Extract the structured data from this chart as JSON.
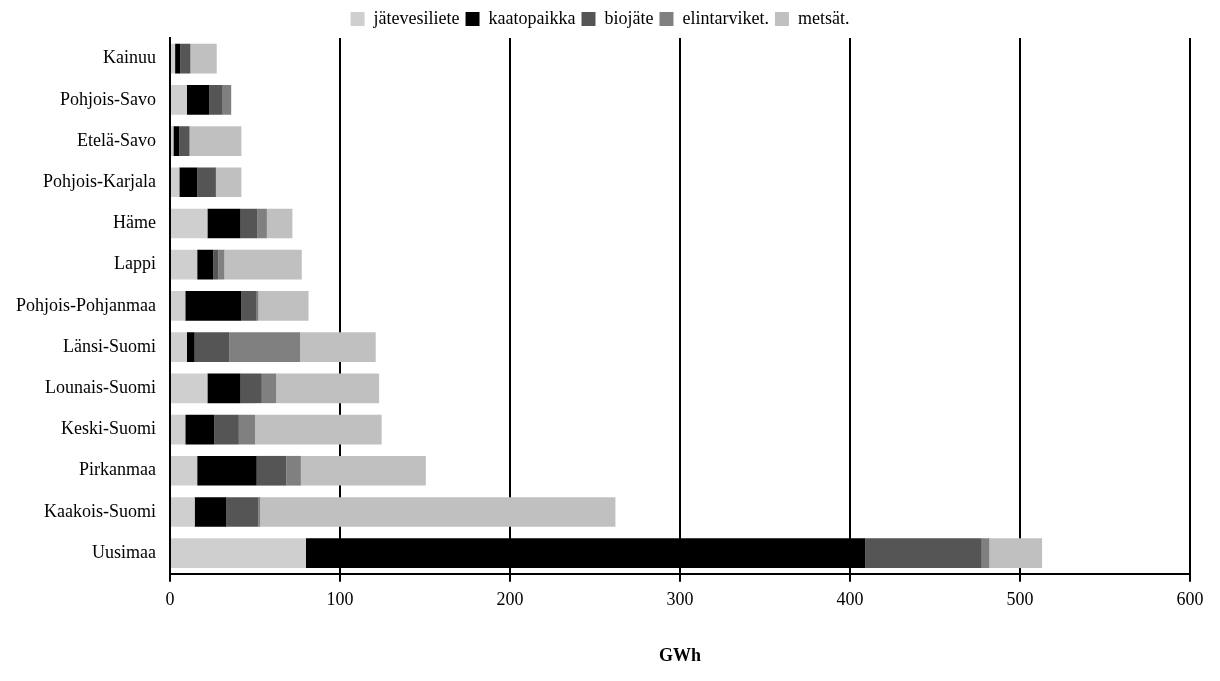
{
  "chart_data": {
    "type": "bar",
    "orientation": "horizontal",
    "stacked": true,
    "xlabel": "GWh",
    "categories": [
      "Kainuu",
      "Pohjois-Savo",
      "Etelä-Savo",
      "Pohjois-Karjala",
      "Häme",
      "Lappi",
      "Pohjois-Pohjanmaa",
      "Länsi-Suomi",
      "Lounais-Suomi",
      "Keski-Suomi",
      "Pirkanmaa",
      "Kaakois-Suomi",
      "Uusimaa"
    ],
    "series": [
      {
        "name": "jätevesiliete",
        "color": "#cfcfcf",
        "values": [
          3,
          10,
          2,
          5.5,
          22,
          16,
          9,
          10,
          22,
          9,
          16,
          14.5,
          80
        ]
      },
      {
        "name": "kaatopaikka",
        "color": "#000000",
        "values": [
          3,
          13,
          3.5,
          10.5,
          19.5,
          9.5,
          33,
          4.5,
          19.5,
          17,
          35,
          18.5,
          329
        ]
      },
      {
        "name": "biojäte",
        "color": "#555555",
        "values": [
          6,
          8,
          6,
          11,
          10,
          3,
          9,
          20.5,
          12.5,
          14.5,
          17.5,
          19,
          68.5
        ]
      },
      {
        "name": "elintarviket.",
        "color": "#808080",
        "values": [
          0,
          5,
          0,
          0,
          5.5,
          3.5,
          1,
          41.5,
          8.5,
          9.5,
          8.5,
          1,
          4.5
        ]
      },
      {
        "name": "metsät.",
        "color": "#c0c0c0",
        "values": [
          15.5,
          0,
          30.5,
          15,
          15,
          45.5,
          29.5,
          44.5,
          60.5,
          74.5,
          73.5,
          209,
          31
        ]
      }
    ],
    "xlim": [
      0,
      600
    ],
    "xticks": [
      0,
      100,
      200,
      300,
      400,
      500,
      600
    ],
    "grid": "x",
    "legend": "top"
  }
}
